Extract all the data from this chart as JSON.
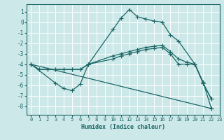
{
  "background_color": "#cde8e8",
  "grid_color": "#b0d4d4",
  "line_color": "#1a6666",
  "xlabel": "Humidex (Indice chaleur)",
  "xlim": [
    -0.5,
    23
  ],
  "ylim": [
    -8.8,
    1.7
  ],
  "yticks": [
    1,
    0,
    -1,
    -2,
    -3,
    -4,
    -5,
    -6,
    -7,
    -8
  ],
  "xticks": [
    0,
    1,
    2,
    3,
    4,
    5,
    6,
    7,
    8,
    9,
    10,
    11,
    12,
    13,
    14,
    15,
    16,
    17,
    18,
    19,
    20,
    21,
    22,
    23
  ],
  "series": [
    {
      "x": [
        0,
        1,
        2,
        3,
        4,
        5,
        6,
        7,
        10,
        11,
        12,
        13,
        14,
        15,
        16,
        17,
        18,
        20,
        21,
        22
      ],
      "y": [
        -4,
        -4.5,
        -4.5,
        -4.5,
        -4.5,
        -4.5,
        -4.5,
        -4,
        -0.7,
        0.4,
        1.2,
        0.5,
        0.3,
        0.1,
        0.0,
        -1.2,
        -1.8,
        -4.0,
        -5.7,
        -8.2
      ]
    },
    {
      "x": [
        0,
        1,
        2,
        3,
        4,
        5,
        6,
        7,
        10,
        11,
        12,
        13,
        14,
        15,
        16,
        17,
        18,
        19,
        20,
        21,
        22
      ],
      "y": [
        -4,
        -4.5,
        -4.5,
        -4.5,
        -4.5,
        -4.5,
        -4.5,
        -4,
        -3.2,
        -3.0,
        -2.8,
        -2.6,
        -2.4,
        -2.3,
        -2.2,
        -2.8,
        -3.5,
        -3.8,
        -4.0,
        -5.8,
        -7.3
      ]
    },
    {
      "x": [
        0,
        22
      ],
      "y": [
        -4,
        -8.2
      ]
    },
    {
      "x": [
        0,
        3,
        4,
        5,
        6,
        7,
        10,
        11,
        12,
        13,
        14,
        15,
        16,
        17,
        18,
        19,
        20,
        21,
        22
      ],
      "y": [
        -4,
        -5.8,
        -6.3,
        -6.5,
        -5.9,
        -4.0,
        -3.5,
        -3.2,
        -3.0,
        -2.8,
        -2.6,
        -2.5,
        -2.4,
        -3.0,
        -4.0,
        -4.0,
        -4.0,
        -5.8,
        -7.3
      ]
    }
  ]
}
